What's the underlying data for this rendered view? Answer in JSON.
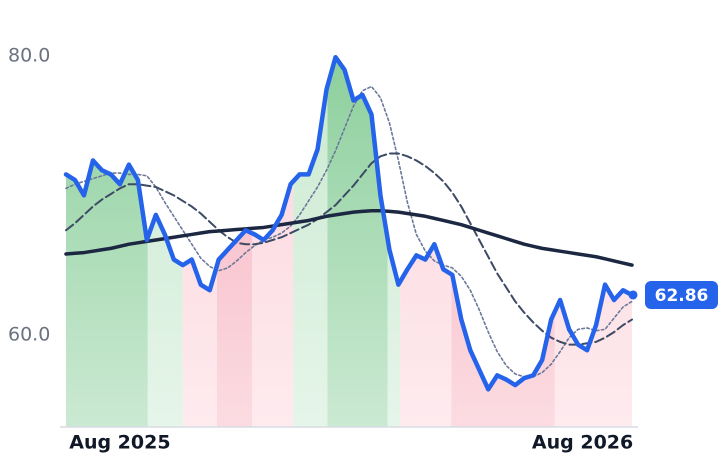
{
  "chart_data": {
    "type": "line",
    "x": [
      0,
      1,
      2,
      3,
      4,
      5,
      6,
      7,
      8,
      9,
      10,
      11,
      12,
      13,
      14,
      15,
      16,
      17,
      18,
      19,
      20,
      21,
      22,
      23,
      24,
      25,
      26,
      27,
      28,
      29,
      30,
      31,
      32,
      33,
      34,
      35,
      36,
      37,
      38,
      39,
      40,
      41,
      42,
      43,
      44,
      45,
      46,
      47,
      48,
      49,
      50,
      51,
      52,
      53,
      54,
      55,
      56,
      57,
      58,
      59,
      60,
      61,
      62,
      63
    ],
    "xlim": [
      0,
      63
    ],
    "xticks": [
      {
        "value": 6,
        "label": "Aug 2025"
      },
      {
        "value": 57.5,
        "label": "Aug 2026"
      }
    ],
    "ylim": [
      53.4,
      84
    ],
    "yticks": [
      {
        "value": 60,
        "label": "60.0"
      },
      {
        "value": 80,
        "label": "80.0"
      }
    ],
    "series": [
      {
        "color": "#2563eb",
        "values": [
          71.5,
          71.1,
          70.0,
          72.5,
          71.8,
          71.5,
          70.8,
          72.2,
          71.1,
          66.8,
          68.6,
          67.2,
          65.4,
          65.0,
          65.4,
          63.6,
          63.2,
          65.4,
          66.1,
          66.8,
          67.5,
          67.2,
          66.8,
          67.5,
          68.6,
          70.8,
          71.5,
          71.5,
          73.3,
          77.6,
          79.9,
          79.0,
          76.8,
          77.2,
          75.8,
          70.0,
          66.1,
          63.6,
          64.7,
          65.7,
          65.4,
          66.5,
          64.7,
          64.3,
          61.1,
          58.9,
          57.5,
          56.1,
          57.1,
          56.8,
          56.4,
          56.9,
          57.1,
          58.2,
          61.1,
          62.5,
          60.4,
          59.3,
          58.9,
          60.7,
          63.6,
          62.5,
          63.2,
          62.86
        ]
      },
      {
        "color": "#1c2742",
        "values": [
          65.8,
          65.85,
          65.9,
          66.0,
          66.1,
          66.2,
          66.35,
          66.5,
          66.6,
          66.7,
          66.8,
          66.9,
          67.0,
          67.1,
          67.2,
          67.3,
          67.4,
          67.45,
          67.5,
          67.55,
          67.6,
          67.65,
          67.7,
          67.8,
          67.9,
          68.0,
          68.1,
          68.2,
          68.35,
          68.5,
          68.6,
          68.7,
          68.8,
          68.85,
          68.9,
          68.9,
          68.85,
          68.8,
          68.7,
          68.6,
          68.5,
          68.35,
          68.2,
          68.05,
          67.9,
          67.7,
          67.5,
          67.3,
          67.1,
          66.9,
          66.7,
          66.5,
          66.35,
          66.2,
          66.1,
          66.0,
          65.9,
          65.8,
          65.7,
          65.6,
          65.45,
          65.3,
          65.15,
          65.0
        ]
      },
      {
        "color": "#3d4a66",
        "values": [
          67.5,
          68.0,
          68.6,
          69.2,
          69.7,
          70.1,
          70.5,
          70.8,
          70.8,
          70.7,
          70.6,
          70.3,
          70.0,
          69.6,
          69.2,
          68.7,
          68.1,
          67.5,
          67.0,
          66.6,
          66.5,
          66.5,
          66.6,
          66.8,
          67.0,
          67.3,
          67.6,
          67.9,
          68.3,
          68.8,
          69.3,
          70.0,
          70.7,
          71.5,
          72.3,
          72.8,
          73.0,
          73.0,
          72.8,
          72.5,
          72.1,
          71.6,
          71.0,
          70.2,
          69.2,
          68.0,
          66.8,
          65.6,
          64.4,
          63.4,
          62.4,
          61.6,
          60.9,
          60.3,
          59.8,
          59.5,
          59.3,
          59.3,
          59.4,
          59.5,
          59.8,
          60.2,
          60.7,
          61.1
        ]
      },
      {
        "color": "#6b7899",
        "values": [
          70.5,
          70.8,
          71.0,
          71.2,
          71.4,
          71.6,
          71.6,
          71.5,
          71.5,
          71.4,
          70.6,
          69.5,
          68.5,
          67.5,
          66.5,
          65.5,
          64.9,
          64.6,
          64.8,
          65.3,
          65.9,
          66.4,
          66.8,
          67.0,
          67.3,
          67.8,
          68.6,
          69.6,
          70.6,
          71.8,
          73.2,
          74.8,
          76.4,
          77.5,
          77.8,
          77.0,
          75.2,
          72.5,
          69.5,
          67.2,
          66.0,
          65.3,
          65.0,
          64.8,
          64.2,
          63.2,
          61.8,
          60.2,
          58.8,
          57.8,
          57.2,
          57.0,
          57.0,
          57.3,
          57.9,
          58.8,
          59.8,
          60.4,
          60.5,
          60.3,
          60.4,
          61.2,
          62.0,
          62.4
        ]
      }
    ],
    "bands": [
      {
        "from": 0,
        "to": 9.1,
        "color": "#8ccf9c"
      },
      {
        "from": 9.1,
        "to": 13.0,
        "color": "#c8e9cf"
      },
      {
        "from": 13.0,
        "to": 16.8,
        "color": "#fcd3db"
      },
      {
        "from": 16.8,
        "to": 20.7,
        "color": "#f7b0be"
      },
      {
        "from": 20.7,
        "to": 25.3,
        "color": "#fcd3db"
      },
      {
        "from": 25.3,
        "to": 29.1,
        "color": "#c8e9cf"
      },
      {
        "from": 29.1,
        "to": 35.8,
        "color": "#8ccf9c"
      },
      {
        "from": 35.8,
        "to": 37.2,
        "color": "#c8e9cf"
      },
      {
        "from": 37.2,
        "to": 42.9,
        "color": "#fcd3db"
      },
      {
        "from": 42.9,
        "to": 54.4,
        "color": "#f7b0be"
      },
      {
        "from": 54.4,
        "to": 63,
        "color": "#fcd3db"
      }
    ]
  }
}
